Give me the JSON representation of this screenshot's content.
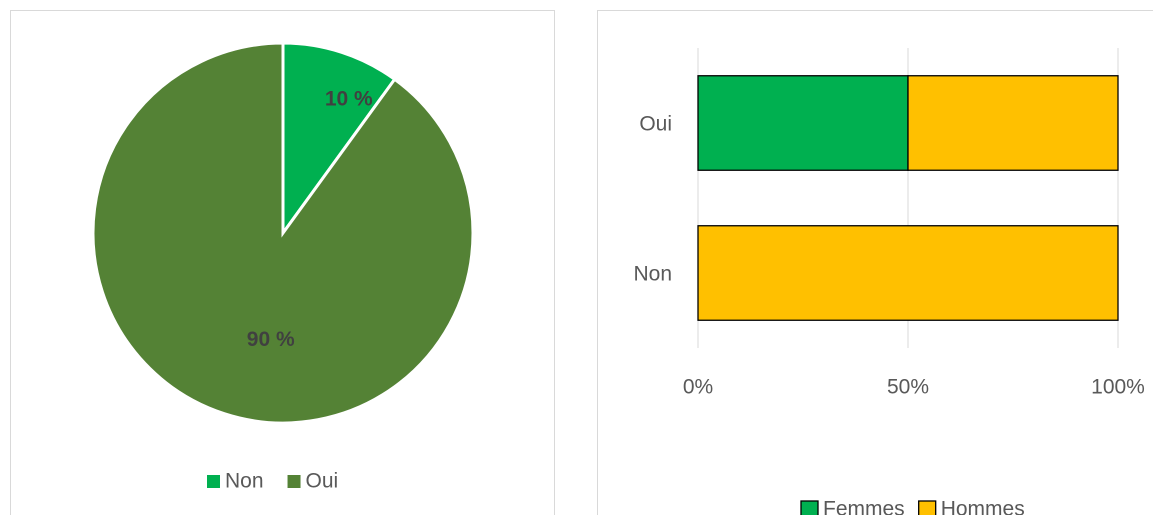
{
  "chart_data": [
    {
      "type": "pie",
      "categories": [
        "Non",
        "Oui"
      ],
      "values": [
        10,
        90
      ],
      "value_labels": [
        "10 %",
        "90 %"
      ],
      "colors": [
        "#00b050",
        "#548235"
      ],
      "legend": "bottom"
    },
    {
      "type": "stacked-bar-horizontal",
      "categories": [
        "Oui",
        "Non"
      ],
      "series": [
        {
          "name": "Femmes",
          "color": "#00b050",
          "values": [
            50,
            0
          ]
        },
        {
          "name": "Hommes",
          "color": "#ffc000",
          "values": [
            50,
            100
          ]
        }
      ],
      "xlim": [
        0,
        100
      ],
      "xticks": [
        {
          "value": 0,
          "label": "0%"
        },
        {
          "value": 50,
          "label": "50%"
        },
        {
          "value": 100,
          "label": "100%"
        }
      ],
      "grid": true,
      "legend": "bottom"
    }
  ]
}
